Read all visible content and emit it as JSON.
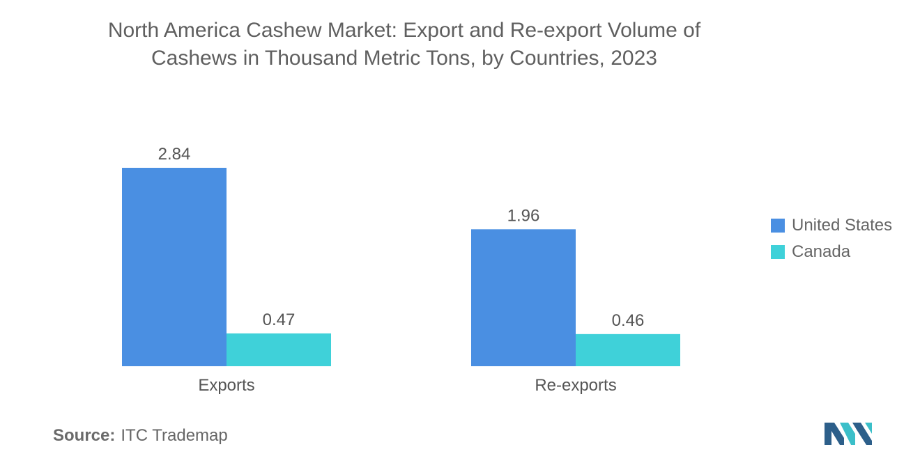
{
  "title_line1": "North America Cashew Market: Export and Re-export Volume of",
  "title_line2": "Cashews in Thousand Metric Tons, by Countries, 2023",
  "source_label": "Source:",
  "source_text": "ITC Trademap",
  "colors": {
    "united_states": "#4a8fe2",
    "canada": "#3fd1d9",
    "logo_dark": "#2d5f8a",
    "logo_teal": "#3bbfc9"
  },
  "chart_data": {
    "type": "bar",
    "title": "North America Cashew Market: Export and Re-export Volume of Cashews in Thousand Metric Tons, by Countries, 2023",
    "categories": [
      "Exports",
      "Re-exports"
    ],
    "series": [
      {
        "name": "United States",
        "values": [
          2.84,
          1.96
        ],
        "labels": [
          "2.84",
          "1.96"
        ]
      },
      {
        "name": "Canada",
        "values": [
          0.47,
          0.46
        ],
        "labels": [
          "0.47",
          "0.46"
        ]
      }
    ],
    "xlabel": "",
    "ylabel": "",
    "ylim": [
      0,
      3.2
    ],
    "grid": false,
    "legend_position": "right"
  }
}
